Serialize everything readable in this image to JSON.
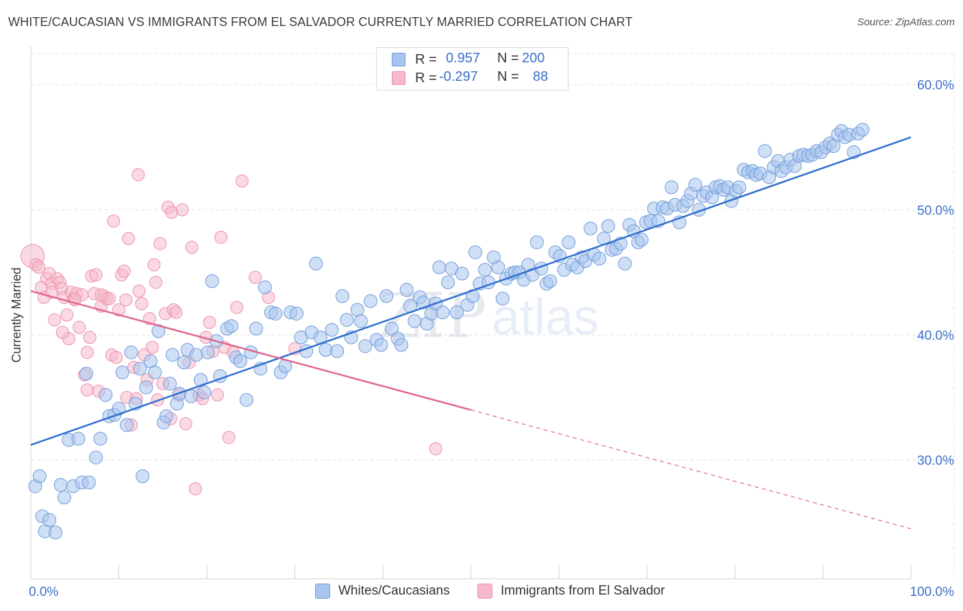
{
  "title": "WHITE/CAUCASIAN VS IMMIGRANTS FROM EL SALVADOR CURRENTLY MARRIED CORRELATION CHART",
  "source": "Source: ZipAtlas.com",
  "legend": {
    "r_label": "R =",
    "n_label": "N =",
    "series1": {
      "r": "0.957",
      "n": "200"
    },
    "series2": {
      "r": "-0.297",
      "n": "88"
    }
  },
  "watermark": {
    "zip": "ZIP",
    "atlas": "atlas"
  },
  "colors": {
    "blue_fill": "#a8c4ef",
    "blue_stroke": "#6f9ad8",
    "blue_line": "#2f6fce",
    "pink_fill": "#f6b9cb",
    "pink_stroke": "#ec8fab",
    "pink_line": "#e0668f",
    "axis_text": "#3a6fc9",
    "grid": "#e2e2e2"
  },
  "chart_data": {
    "type": "scatter",
    "title": "WHITE/CAUCASIAN VS IMMIGRANTS FROM EL SALVADOR CURRENTLY MARRIED CORRELATION CHART",
    "xlabel": "",
    "ylabel": "Currently Married",
    "xlim": [
      0,
      100
    ],
    "ylim": [
      20.5,
      62.5
    ],
    "x_tick_labels": [
      "0.0%",
      "100.0%"
    ],
    "y_ticks": [
      30,
      40,
      50,
      60
    ],
    "y_tick_labels": [
      "30.0%",
      "40.0%",
      "50.0%",
      "60.0%"
    ],
    "grid": true,
    "legend_position": "top-center",
    "series": [
      {
        "name": "Whites/Caucasians",
        "r": 0.957,
        "n": 200,
        "trend": {
          "x": [
            0,
            100
          ],
          "y": [
            31.2,
            55.8
          ],
          "dashed_after": null
        },
        "points": [
          [
            0.5,
            27.9
          ],
          [
            1.0,
            28.7
          ],
          [
            1.3,
            25.5
          ],
          [
            1.6,
            24.3
          ],
          [
            2.1,
            25.2
          ],
          [
            2.8,
            24.2
          ],
          [
            3.4,
            28.0
          ],
          [
            3.8,
            27.0
          ],
          [
            4.3,
            31.6
          ],
          [
            4.8,
            27.9
          ],
          [
            5.4,
            31.7
          ],
          [
            5.8,
            28.2
          ],
          [
            6.3,
            36.9
          ],
          [
            6.6,
            28.2
          ],
          [
            7.4,
            30.2
          ],
          [
            7.9,
            31.7
          ],
          [
            8.5,
            35.2
          ],
          [
            8.9,
            33.5
          ],
          [
            9.5,
            33.6
          ],
          [
            10.0,
            34.1
          ],
          [
            10.4,
            37.0
          ],
          [
            10.9,
            32.8
          ],
          [
            11.4,
            38.6
          ],
          [
            11.9,
            34.5
          ],
          [
            12.4,
            37.3
          ],
          [
            12.7,
            28.7
          ],
          [
            13.1,
            35.8
          ],
          [
            13.6,
            37.9
          ],
          [
            14.1,
            37.0
          ],
          [
            14.5,
            40.3
          ],
          [
            15.1,
            33.0
          ],
          [
            15.4,
            33.5
          ],
          [
            15.8,
            36.1
          ],
          [
            16.1,
            38.4
          ],
          [
            16.6,
            34.5
          ],
          [
            16.9,
            35.3
          ],
          [
            17.4,
            37.8
          ],
          [
            17.8,
            38.8
          ],
          [
            18.2,
            35.1
          ],
          [
            18.8,
            38.4
          ],
          [
            19.3,
            36.4
          ],
          [
            19.7,
            35.4
          ],
          [
            20.1,
            38.6
          ],
          [
            20.6,
            44.3
          ],
          [
            21.1,
            39.5
          ],
          [
            21.5,
            36.7
          ],
          [
            22.3,
            40.5
          ],
          [
            22.8,
            40.7
          ],
          [
            23.3,
            38.2
          ],
          [
            23.8,
            37.9
          ],
          [
            24.5,
            34.8
          ],
          [
            25.0,
            38.6
          ],
          [
            25.6,
            40.5
          ],
          [
            26.1,
            37.3
          ],
          [
            26.6,
            43.8
          ],
          [
            27.3,
            41.8
          ],
          [
            27.8,
            41.7
          ],
          [
            28.4,
            37.0
          ],
          [
            28.9,
            37.5
          ],
          [
            29.5,
            41.8
          ],
          [
            30.2,
            41.7
          ],
          [
            30.7,
            39.8
          ],
          [
            31.3,
            38.7
          ],
          [
            31.9,
            40.2
          ],
          [
            32.4,
            45.7
          ],
          [
            32.9,
            39.8
          ],
          [
            33.5,
            38.8
          ],
          [
            34.2,
            40.4
          ],
          [
            34.8,
            38.7
          ],
          [
            35.4,
            43.1
          ],
          [
            35.9,
            41.2
          ],
          [
            36.4,
            39.8
          ],
          [
            37.1,
            42.0
          ],
          [
            37.5,
            41.1
          ],
          [
            38.0,
            39.1
          ],
          [
            38.6,
            42.7
          ],
          [
            39.3,
            39.6
          ],
          [
            39.8,
            39.2
          ],
          [
            40.4,
            43.1
          ],
          [
            41.0,
            40.5
          ],
          [
            41.7,
            39.7
          ],
          [
            42.1,
            39.2
          ],
          [
            42.7,
            43.6
          ],
          [
            43.1,
            42.3
          ],
          [
            43.6,
            41.1
          ],
          [
            44.2,
            43.0
          ],
          [
            44.6,
            42.6
          ],
          [
            45.0,
            40.9
          ],
          [
            45.5,
            41.7
          ],
          [
            46.0,
            42.5
          ],
          [
            46.4,
            45.4
          ],
          [
            46.8,
            41.8
          ],
          [
            47.4,
            44.2
          ],
          [
            47.8,
            45.3
          ],
          [
            48.4,
            41.8
          ],
          [
            49.0,
            44.9
          ],
          [
            49.6,
            42.4
          ],
          [
            50.2,
            43.1
          ],
          [
            50.5,
            46.6
          ],
          [
            51.0,
            44.1
          ],
          [
            51.6,
            45.2
          ],
          [
            52.0,
            44.2
          ],
          [
            52.6,
            46.2
          ],
          [
            53.1,
            45.4
          ],
          [
            53.6,
            42.9
          ],
          [
            54.0,
            44.5
          ],
          [
            54.6,
            44.9
          ],
          [
            55.0,
            45.0
          ],
          [
            55.5,
            45.0
          ],
          [
            56.0,
            44.4
          ],
          [
            56.5,
            45.6
          ],
          [
            57.0,
            44.8
          ],
          [
            57.5,
            47.4
          ],
          [
            58.0,
            45.3
          ],
          [
            58.6,
            44.1
          ],
          [
            59.0,
            44.3
          ],
          [
            59.6,
            46.6
          ],
          [
            60.1,
            46.3
          ],
          [
            60.6,
            45.2
          ],
          [
            61.1,
            47.4
          ],
          [
            61.5,
            45.6
          ],
          [
            62.1,
            45.4
          ],
          [
            62.6,
            46.2
          ],
          [
            63.0,
            45.9
          ],
          [
            63.6,
            48.5
          ],
          [
            64.0,
            46.4
          ],
          [
            64.6,
            46.1
          ],
          [
            65.1,
            47.7
          ],
          [
            65.6,
            48.7
          ],
          [
            66.0,
            46.8
          ],
          [
            66.5,
            46.9
          ],
          [
            67.0,
            47.3
          ],
          [
            67.5,
            45.7
          ],
          [
            68.0,
            48.8
          ],
          [
            68.5,
            48.3
          ],
          [
            69.0,
            47.4
          ],
          [
            69.4,
            47.6
          ],
          [
            69.9,
            49.0
          ],
          [
            70.4,
            49.1
          ],
          [
            70.8,
            50.1
          ],
          [
            71.3,
            49.1
          ],
          [
            71.8,
            50.2
          ],
          [
            72.3,
            50.1
          ],
          [
            72.8,
            51.8
          ],
          [
            73.2,
            50.4
          ],
          [
            73.7,
            49.0
          ],
          [
            74.1,
            50.3
          ],
          [
            74.6,
            50.7
          ],
          [
            75.0,
            51.3
          ],
          [
            75.5,
            52.0
          ],
          [
            75.9,
            50.0
          ],
          [
            76.4,
            51.1
          ],
          [
            76.8,
            51.4
          ],
          [
            77.4,
            51.0
          ],
          [
            77.8,
            51.8
          ],
          [
            78.3,
            51.9
          ],
          [
            78.7,
            51.6
          ],
          [
            79.2,
            51.8
          ],
          [
            79.6,
            50.7
          ],
          [
            80.1,
            51.5
          ],
          [
            80.5,
            51.8
          ],
          [
            81.0,
            53.2
          ],
          [
            81.5,
            53.0
          ],
          [
            82.0,
            53.1
          ],
          [
            82.4,
            52.8
          ],
          [
            82.9,
            52.9
          ],
          [
            83.4,
            54.7
          ],
          [
            83.9,
            52.6
          ],
          [
            84.4,
            53.4
          ],
          [
            84.9,
            53.9
          ],
          [
            85.3,
            53.1
          ],
          [
            85.8,
            53.4
          ],
          [
            86.3,
            54.0
          ],
          [
            86.8,
            53.5
          ],
          [
            87.3,
            54.3
          ],
          [
            87.8,
            54.4
          ],
          [
            88.3,
            54.3
          ],
          [
            88.8,
            54.4
          ],
          [
            89.3,
            54.7
          ],
          [
            89.8,
            54.6
          ],
          [
            90.3,
            55.0
          ],
          [
            90.8,
            55.3
          ],
          [
            91.2,
            55.1
          ],
          [
            91.7,
            56.0
          ],
          [
            92.1,
            56.3
          ],
          [
            92.5,
            55.8
          ],
          [
            93.0,
            56.0
          ],
          [
            93.5,
            54.6
          ],
          [
            94.0,
            56.1
          ],
          [
            94.5,
            56.4
          ]
        ]
      },
      {
        "name": "Immigrants from El Salvador",
        "r": -0.297,
        "n": 88,
        "trend": {
          "x": [
            0,
            100
          ],
          "y": [
            43.5,
            24.5
          ],
          "solid_until_x": 50
        },
        "points": [
          [
            0.2,
            46.3
          ],
          [
            0.6,
            45.6
          ],
          [
            0.9,
            45.4
          ],
          [
            1.2,
            43.8
          ],
          [
            1.5,
            43.0
          ],
          [
            1.8,
            44.5
          ],
          [
            2.1,
            44.9
          ],
          [
            2.4,
            44.1
          ],
          [
            2.7,
            41.2
          ],
          [
            3.0,
            44.5
          ],
          [
            3.3,
            44.2
          ],
          [
            3.5,
            43.7
          ],
          [
            3.8,
            43.0
          ],
          [
            4.1,
            41.6
          ],
          [
            4.3,
            39.7
          ],
          [
            4.6,
            43.4
          ],
          [
            4.9,
            42.9
          ],
          [
            5.2,
            43.3
          ],
          [
            5.5,
            40.6
          ],
          [
            5.8,
            43.2
          ],
          [
            6.1,
            36.8
          ],
          [
            6.4,
            35.6
          ],
          [
            6.7,
            39.8
          ],
          [
            6.9,
            44.7
          ],
          [
            7.2,
            43.3
          ],
          [
            7.4,
            44.8
          ],
          [
            7.7,
            35.5
          ],
          [
            8.0,
            42.3
          ],
          [
            8.3,
            43.1
          ],
          [
            8.6,
            42.9
          ],
          [
            8.9,
            42.9
          ],
          [
            9.2,
            38.4
          ],
          [
            9.4,
            49.1
          ],
          [
            9.7,
            38.2
          ],
          [
            10.0,
            42.0
          ],
          [
            10.3,
            44.8
          ],
          [
            10.6,
            45.1
          ],
          [
            10.9,
            35.0
          ],
          [
            11.1,
            47.7
          ],
          [
            11.4,
            32.8
          ],
          [
            11.7,
            37.4
          ],
          [
            12.0,
            34.9
          ],
          [
            12.3,
            43.5
          ],
          [
            12.6,
            42.5
          ],
          [
            12.9,
            38.4
          ],
          [
            13.2,
            36.4
          ],
          [
            13.5,
            41.3
          ],
          [
            13.8,
            39.0
          ],
          [
            14.0,
            45.6
          ],
          [
            14.4,
            34.8
          ],
          [
            14.7,
            47.3
          ],
          [
            15.0,
            36.1
          ],
          [
            15.3,
            41.7
          ],
          [
            15.6,
            50.2
          ],
          [
            15.9,
            33.3
          ],
          [
            16.2,
            42.0
          ],
          [
            16.5,
            41.8
          ],
          [
            16.8,
            35.2
          ],
          [
            17.2,
            50.0
          ],
          [
            17.6,
            32.9
          ],
          [
            18.0,
            37.8
          ],
          [
            18.3,
            47.0
          ],
          [
            18.7,
            27.7
          ],
          [
            19.1,
            35.2
          ],
          [
            19.5,
            34.9
          ],
          [
            19.9,
            39.8
          ],
          [
            20.3,
            41.0
          ],
          [
            20.7,
            38.7
          ],
          [
            21.2,
            35.2
          ],
          [
            21.6,
            47.8
          ],
          [
            22.0,
            39.0
          ],
          [
            22.5,
            31.8
          ],
          [
            23.0,
            38.6
          ],
          [
            23.4,
            42.2
          ],
          [
            24.0,
            52.3
          ],
          [
            25.5,
            44.6
          ],
          [
            27.0,
            43.0
          ],
          [
            30.0,
            38.9
          ],
          [
            12.2,
            52.8
          ],
          [
            8.0,
            43.2
          ],
          [
            5.0,
            42.8
          ],
          [
            3.6,
            40.2
          ],
          [
            2.4,
            43.4
          ],
          [
            6.4,
            38.6
          ],
          [
            46.0,
            30.9
          ],
          [
            16.0,
            49.8
          ],
          [
            10.8,
            42.8
          ],
          [
            14.2,
            44.2
          ]
        ]
      }
    ]
  },
  "bottom_legend": [
    "Whites/Caucasians",
    "Immigrants from El Salvador"
  ]
}
